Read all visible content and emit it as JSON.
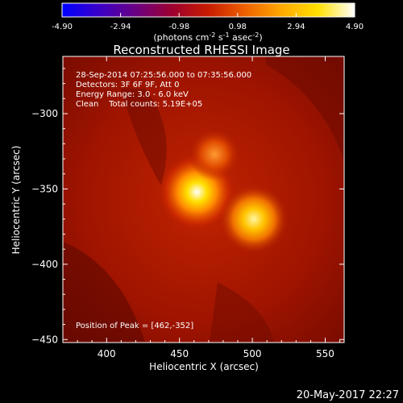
{
  "chart_data": {
    "type": "heatmap",
    "title": "Reconstructed RHESSI Image",
    "colorbar": {
      "ticks": [
        -4.9,
        -2.94,
        -0.98,
        0.98,
        2.94,
        4.9
      ],
      "tick_labels": [
        "-4.90",
        "-2.94",
        "-0.98",
        "0.98",
        "2.94",
        "4.90"
      ],
      "label_prefix": "(photons cm",
      "label_exp1": "-2",
      "label_mid": " s",
      "label_exp2": "-1",
      "label_mid2": " asec",
      "label_exp3": "-2",
      "label_suffix": ")",
      "colormap": [
        "#0000ff",
        "#3a00c8",
        "#6a0084",
        "#9c0030",
        "#c81c00",
        "#ee6000",
        "#ffa800",
        "#ffe000",
        "#ffffff"
      ]
    },
    "xlabel": "Heliocentric X (arcsec)",
    "ylabel": "Heliocentric Y (arcsec)",
    "xlim": [
      370,
      563
    ],
    "ylim": [
      -452,
      -262
    ],
    "x_ticks": [
      400,
      450,
      500,
      550
    ],
    "y_ticks": [
      -300,
      -350,
      -400,
      -450
    ],
    "annotations": [
      "28-Sep-2014 07:25:56.000 to 07:35:56.000",
      "Detectors: 3F 6F 9F, Att 0",
      "Energy Range: 3.0 - 6.0 keV",
      "Clean    Total counts: 5.19E+05"
    ],
    "peak_label": "Position of Peak = [462,-352]",
    "sources": [
      {
        "x": 462,
        "y": -352,
        "peak": 4.9,
        "sigma": 9
      },
      {
        "x": 501,
        "y": -370,
        "peak": 3.9,
        "sigma": 8
      },
      {
        "x": 474,
        "y": -327,
        "peak": 1.6,
        "sigma": 6
      }
    ],
    "background_level": 1.2
  },
  "footer_date": "20-May-2017 22:27"
}
